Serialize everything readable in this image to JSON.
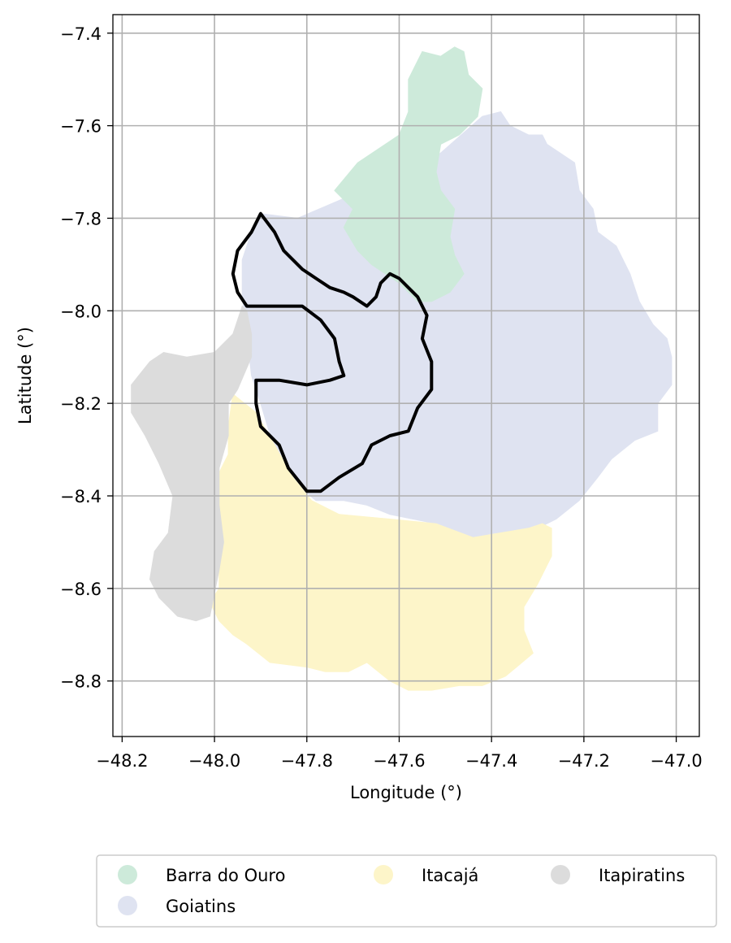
{
  "map": {
    "xlabel": "Longitude (°)",
    "ylabel": "Latitude (°)",
    "xlim": [
      -48.22,
      -46.95
    ],
    "ylim": [
      -8.92,
      -7.36
    ],
    "x_ticks": [
      -48.2,
      -48.0,
      -47.8,
      -47.6,
      -47.4,
      -47.2,
      -47.0
    ],
    "y_ticks": [
      -7.4,
      -7.6,
      -7.8,
      -8.0,
      -8.2,
      -8.4,
      -8.6,
      -8.8
    ],
    "x_tick_labels": [
      "−48.2",
      "−48.0",
      "−47.8",
      "−47.6",
      "−47.4",
      "−47.2",
      "−47.0"
    ],
    "y_tick_labels": [
      "−7.4",
      "−7.6",
      "−7.8",
      "−8.0",
      "−8.2",
      "−8.4",
      "−8.6",
      "−8.8"
    ],
    "grid": true,
    "legend_placement": "bottom-center",
    "regions": [
      {
        "name": "Goiatins",
        "color": "#dfe3f1",
        "boundary": [
          [
            -47.9,
            -7.79
          ],
          [
            -47.82,
            -7.8
          ],
          [
            -47.68,
            -7.74
          ],
          [
            -47.58,
            -7.72
          ],
          [
            -47.5,
            -7.65
          ],
          [
            -47.42,
            -7.58
          ],
          [
            -47.38,
            -7.57
          ],
          [
            -47.36,
            -7.6
          ],
          [
            -47.32,
            -7.62
          ],
          [
            -47.29,
            -7.62
          ],
          [
            -47.28,
            -7.64
          ],
          [
            -47.22,
            -7.68
          ],
          [
            -47.21,
            -7.74
          ],
          [
            -47.18,
            -7.78
          ],
          [
            -47.17,
            -7.83
          ],
          [
            -47.13,
            -7.86
          ],
          [
            -47.1,
            -7.92
          ],
          [
            -47.08,
            -7.98
          ],
          [
            -47.05,
            -8.03
          ],
          [
            -47.02,
            -8.06
          ],
          [
            -47.01,
            -8.1
          ],
          [
            -47.01,
            -8.16
          ],
          [
            -47.04,
            -8.2
          ],
          [
            -47.04,
            -8.26
          ],
          [
            -47.09,
            -8.28
          ],
          [
            -47.14,
            -8.32
          ],
          [
            -47.17,
            -8.36
          ],
          [
            -47.21,
            -8.41
          ],
          [
            -47.26,
            -8.45
          ],
          [
            -47.32,
            -8.48
          ],
          [
            -47.39,
            -8.48
          ],
          [
            -47.44,
            -8.49
          ],
          [
            -47.52,
            -8.46
          ],
          [
            -47.62,
            -8.44
          ],
          [
            -47.67,
            -8.42
          ],
          [
            -47.72,
            -8.41
          ],
          [
            -47.78,
            -8.41
          ],
          [
            -47.83,
            -8.37
          ],
          [
            -47.87,
            -8.3
          ],
          [
            -47.9,
            -8.2
          ],
          [
            -47.92,
            -8.14
          ],
          [
            -47.93,
            -8.05
          ],
          [
            -47.94,
            -7.97
          ],
          [
            -47.94,
            -7.89
          ],
          [
            -47.92,
            -7.83
          ]
        ]
      },
      {
        "name": "Barra do Ouro",
        "color": "#cdeada",
        "boundary": [
          [
            -47.55,
            -7.44
          ],
          [
            -47.51,
            -7.45
          ],
          [
            -47.48,
            -7.43
          ],
          [
            -47.46,
            -7.44
          ],
          [
            -47.45,
            -7.49
          ],
          [
            -47.42,
            -7.52
          ],
          [
            -47.43,
            -7.58
          ],
          [
            -47.47,
            -7.62
          ],
          [
            -47.51,
            -7.64
          ],
          [
            -47.52,
            -7.7
          ],
          [
            -47.51,
            -7.74
          ],
          [
            -47.48,
            -7.78
          ],
          [
            -47.49,
            -7.84
          ],
          [
            -47.48,
            -7.88
          ],
          [
            -47.46,
            -7.92
          ],
          [
            -47.49,
            -7.96
          ],
          [
            -47.53,
            -7.98
          ],
          [
            -47.56,
            -7.98
          ],
          [
            -47.6,
            -7.94
          ],
          [
            -47.66,
            -7.9
          ],
          [
            -47.69,
            -7.87
          ],
          [
            -47.72,
            -7.82
          ],
          [
            -47.7,
            -7.78
          ],
          [
            -47.74,
            -7.74
          ],
          [
            -47.69,
            -7.68
          ],
          [
            -47.6,
            -7.62
          ],
          [
            -47.58,
            -7.57
          ],
          [
            -47.58,
            -7.5
          ],
          [
            -47.56,
            -7.46
          ]
        ]
      },
      {
        "name": "Itacajá",
        "color": "#fdf5c9",
        "boundary": [
          [
            -47.96,
            -8.18
          ],
          [
            -47.91,
            -8.22
          ],
          [
            -47.87,
            -8.29
          ],
          [
            -47.83,
            -8.36
          ],
          [
            -47.79,
            -8.41
          ],
          [
            -47.73,
            -8.44
          ],
          [
            -47.62,
            -8.45
          ],
          [
            -47.52,
            -8.46
          ],
          [
            -47.44,
            -8.49
          ],
          [
            -47.38,
            -8.48
          ],
          [
            -47.32,
            -8.47
          ],
          [
            -47.29,
            -8.46
          ],
          [
            -47.27,
            -8.47
          ],
          [
            -47.27,
            -8.53
          ],
          [
            -47.3,
            -8.59
          ],
          [
            -47.33,
            -8.64
          ],
          [
            -47.33,
            -8.69
          ],
          [
            -47.31,
            -8.74
          ],
          [
            -47.37,
            -8.79
          ],
          [
            -47.42,
            -8.81
          ],
          [
            -47.47,
            -8.81
          ],
          [
            -47.53,
            -8.82
          ],
          [
            -47.58,
            -8.82
          ],
          [
            -47.62,
            -8.8
          ],
          [
            -47.67,
            -8.76
          ],
          [
            -47.71,
            -8.78
          ],
          [
            -47.76,
            -8.78
          ],
          [
            -47.8,
            -8.77
          ],
          [
            -47.88,
            -8.76
          ],
          [
            -47.93,
            -8.72
          ],
          [
            -47.96,
            -8.7
          ],
          [
            -47.99,
            -8.67
          ],
          [
            -48.01,
            -8.63
          ],
          [
            -47.99,
            -8.6
          ],
          [
            -47.99,
            -8.55
          ],
          [
            -47.98,
            -8.49
          ],
          [
            -47.99,
            -8.42
          ],
          [
            -47.99,
            -8.35
          ],
          [
            -47.97,
            -8.31
          ],
          [
            -47.97,
            -8.25
          ]
        ]
      },
      {
        "name": "Itapiratins",
        "color": "#dcdcdc",
        "boundary": [
          [
            -47.93,
            -8.0
          ],
          [
            -47.92,
            -8.05
          ],
          [
            -47.92,
            -8.1
          ],
          [
            -47.95,
            -8.17
          ],
          [
            -47.97,
            -8.2
          ],
          [
            -47.97,
            -8.27
          ],
          [
            -47.99,
            -8.34
          ],
          [
            -47.99,
            -8.42
          ],
          [
            -47.98,
            -8.5
          ],
          [
            -47.99,
            -8.56
          ],
          [
            -48.0,
            -8.61
          ],
          [
            -48.01,
            -8.66
          ],
          [
            -48.04,
            -8.67
          ],
          [
            -48.08,
            -8.66
          ],
          [
            -48.12,
            -8.62
          ],
          [
            -48.14,
            -8.58
          ],
          [
            -48.13,
            -8.52
          ],
          [
            -48.1,
            -8.48
          ],
          [
            -48.09,
            -8.4
          ],
          [
            -48.12,
            -8.33
          ],
          [
            -48.15,
            -8.27
          ],
          [
            -48.18,
            -8.22
          ],
          [
            -48.18,
            -8.16
          ],
          [
            -48.14,
            -8.11
          ],
          [
            -48.11,
            -8.09
          ],
          [
            -48.06,
            -8.1
          ],
          [
            -48.0,
            -8.09
          ],
          [
            -47.96,
            -8.05
          ],
          [
            -47.94,
            -7.99
          ]
        ]
      }
    ],
    "outline": [
      [
        -47.9,
        -7.79
      ],
      [
        -47.92,
        -7.83
      ],
      [
        -47.95,
        -7.87
      ],
      [
        -47.96,
        -7.92
      ],
      [
        -47.95,
        -7.96
      ],
      [
        -47.93,
        -7.99
      ],
      [
        -47.87,
        -7.99
      ],
      [
        -47.81,
        -7.99
      ],
      [
        -47.77,
        -8.02
      ],
      [
        -47.74,
        -8.06
      ],
      [
        -47.73,
        -8.11
      ],
      [
        -47.72,
        -8.14
      ],
      [
        -47.75,
        -8.15
      ],
      [
        -47.8,
        -8.16
      ],
      [
        -47.86,
        -8.15
      ],
      [
        -47.91,
        -8.15
      ],
      [
        -47.91,
        -8.2
      ],
      [
        -47.9,
        -8.25
      ],
      [
        -47.86,
        -8.29
      ],
      [
        -47.84,
        -8.34
      ],
      [
        -47.8,
        -8.39
      ],
      [
        -47.77,
        -8.39
      ],
      [
        -47.73,
        -8.36
      ],
      [
        -47.68,
        -8.33
      ],
      [
        -47.66,
        -8.29
      ],
      [
        -47.62,
        -8.27
      ],
      [
        -47.58,
        -8.26
      ],
      [
        -47.56,
        -8.21
      ],
      [
        -47.53,
        -8.17
      ],
      [
        -47.53,
        -8.11
      ],
      [
        -47.55,
        -8.06
      ],
      [
        -47.54,
        -8.01
      ],
      [
        -47.56,
        -7.97
      ],
      [
        -47.58,
        -7.95
      ],
      [
        -47.6,
        -7.93
      ],
      [
        -47.62,
        -7.92
      ],
      [
        -47.64,
        -7.94
      ],
      [
        -47.65,
        -7.97
      ],
      [
        -47.67,
        -7.99
      ],
      [
        -47.7,
        -7.97
      ],
      [
        -47.72,
        -7.96
      ],
      [
        -47.75,
        -7.95
      ],
      [
        -47.78,
        -7.93
      ],
      [
        -47.81,
        -7.91
      ],
      [
        -47.85,
        -7.87
      ],
      [
        -47.87,
        -7.83
      ]
    ]
  },
  "legend": {
    "items": [
      {
        "label": "Barra do Ouro",
        "color": "#cdeada"
      },
      {
        "label": "Itacajá",
        "color": "#fdf5c9"
      },
      {
        "label": "Itapiratins",
        "color": "#dcdcdc"
      },
      {
        "label": "Goiatins",
        "color": "#dfe3f1"
      }
    ]
  }
}
